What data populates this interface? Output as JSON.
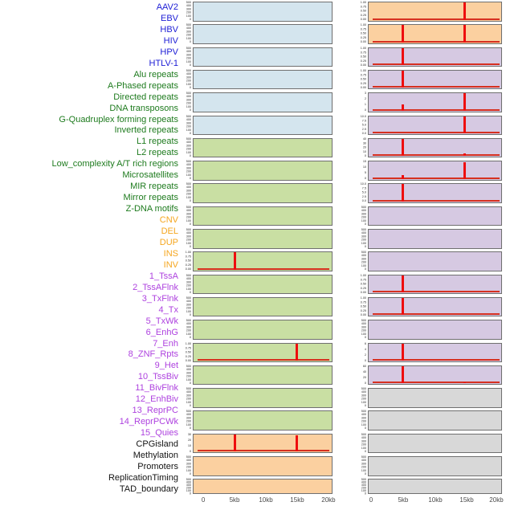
{
  "groups": {
    "virus": {
      "label_color": "#2020d6",
      "panel_color": "#d4e5ee"
    },
    "repeat": {
      "label_color": "#1e7b1e",
      "panel_color": "#c9dfa3"
    },
    "sv": {
      "label_color": "#f5a61e",
      "panel_color": "#fbd0a0"
    },
    "chromhmm": {
      "label_color": "#ae42df",
      "panel_color": "#d6c9e2"
    },
    "other": {
      "label_color": "#141414",
      "panel_color": "#d8d8d8"
    }
  },
  "colors": {
    "spike": "#ee0e0e",
    "baseline": "#d63020",
    "panel_border": "#707070",
    "axis_text": "#4a4a4a",
    "ytick_text": "#2e2e2e"
  },
  "chart_data": {
    "type": "bar",
    "layout": "small-multiples: 44 feature tracks in 2 columns of 22 rows; red spike bars mark feature density peaks near 5kb and 15kb; shared x-axis 0-20kb; y-tick labels per panel; feature name list down the left gutter",
    "x_axis": {
      "ticks": [
        "0",
        "5kb",
        "10kb",
        "15kb",
        "20kb"
      ],
      "left_pct": [
        7.5,
        29.9,
        52.3,
        74.7,
        97.1
      ],
      "right_pct": [
        2.4,
        26.3,
        50.3,
        73.7,
        95.8
      ]
    },
    "panels": [
      {
        "feature": "AAV2",
        "group": "virus",
        "yticks": [
          "500",
          "400",
          "300",
          "200",
          "100",
          "0"
        ],
        "spikes": [],
        "baseline": false
      },
      {
        "feature": "EBV",
        "group": "virus",
        "yticks": [
          "500",
          "400",
          "300",
          "200",
          "100",
          "0"
        ],
        "spikes": [],
        "baseline": false
      },
      {
        "feature": "HBV",
        "group": "virus",
        "yticks": [
          "500",
          "400",
          "300",
          "200",
          "100",
          "0"
        ],
        "spikes": [],
        "baseline": false
      },
      {
        "feature": "HIV",
        "group": "virus",
        "yticks": [
          "500",
          "400",
          "300",
          "200",
          "100",
          "0"
        ],
        "spikes": [],
        "baseline": false
      },
      {
        "feature": "HPV",
        "group": "virus",
        "yticks": [
          "500",
          "400",
          "300",
          "200",
          "100",
          "0"
        ],
        "spikes": [],
        "baseline": false
      },
      {
        "feature": "HTLV-1",
        "group": "virus",
        "yticks": [
          "500",
          "400",
          "300",
          "200",
          "100",
          "0"
        ],
        "spikes": [],
        "baseline": false
      },
      {
        "feature": "Alu repeats",
        "group": "repeat",
        "yticks": [
          "500",
          "400",
          "300",
          "200",
          "100",
          "0"
        ],
        "spikes": [],
        "baseline": false
      },
      {
        "feature": "A-Phased repeats",
        "group": "repeat",
        "yticks": [
          "500",
          "400",
          "300",
          "200",
          "100",
          "0"
        ],
        "spikes": [],
        "baseline": false
      },
      {
        "feature": "Directed repeats",
        "group": "repeat",
        "yticks": [
          "500",
          "400",
          "300",
          "200",
          "100",
          "0"
        ],
        "spikes": [],
        "baseline": false
      },
      {
        "feature": "DNA transposons",
        "group": "repeat",
        "yticks": [
          "500",
          "400",
          "300",
          "200",
          "100",
          "0"
        ],
        "spikes": [],
        "baseline": false
      },
      {
        "feature": "G-Quadruplex forming repeats",
        "group": "repeat",
        "yticks": [
          "500",
          "400",
          "300",
          "200",
          "100",
          "0"
        ],
        "spikes": [],
        "baseline": false
      },
      {
        "feature": "Inverted repeats",
        "group": "repeat",
        "yticks": [
          "1.00",
          "0.75",
          "0.50",
          "0.25",
          "0.00"
        ],
        "spikes": [
          {
            "kb": 5,
            "h": 1.0
          }
        ],
        "baseline": true
      },
      {
        "feature": "L1 repeats",
        "group": "repeat",
        "yticks": [
          "500",
          "400",
          "300",
          "200",
          "100",
          "0"
        ],
        "spikes": [],
        "baseline": false
      },
      {
        "feature": "L2 repeats",
        "group": "repeat",
        "yticks": [
          "500",
          "400",
          "300",
          "200",
          "100",
          "0"
        ],
        "spikes": [],
        "baseline": false
      },
      {
        "feature": "Low_complexity A/T rich regions",
        "group": "repeat",
        "yticks": [
          "500",
          "400",
          "300",
          "200",
          "100",
          "0"
        ],
        "spikes": [],
        "baseline": false
      },
      {
        "feature": "Microsatellites",
        "group": "repeat",
        "yticks": [
          "1.00",
          "0.75",
          "0.50",
          "0.25",
          "0.00"
        ],
        "spikes": [
          {
            "kb": 15,
            "h": 1.0
          }
        ],
        "baseline": true
      },
      {
        "feature": "MIR repeats",
        "group": "repeat",
        "yticks": [
          "500",
          "400",
          "300",
          "200",
          "100",
          "0"
        ],
        "spikes": [],
        "baseline": false
      },
      {
        "feature": "Mirror repeats",
        "group": "repeat",
        "yticks": [
          "500",
          "400",
          "300",
          "200",
          "100",
          "0"
        ],
        "spikes": [],
        "baseline": false
      },
      {
        "feature": "Z-DNA motifs",
        "group": "repeat",
        "yticks": [
          "500",
          "400",
          "300",
          "200",
          "100",
          "0"
        ],
        "spikes": [],
        "baseline": false
      },
      {
        "feature": "CNV",
        "group": "sv",
        "yticks": [
          "30",
          "20",
          "10",
          "0"
        ],
        "spikes": [
          {
            "kb": 5,
            "h": 1.0
          },
          {
            "kb": 15,
            "h": 0.95
          }
        ],
        "baseline": true
      },
      {
        "feature": "DEL",
        "group": "sv",
        "yticks": [
          "500",
          "400",
          "300",
          "200",
          "100",
          "0"
        ],
        "spikes": [],
        "baseline": false
      },
      {
        "feature": "DUP",
        "group": "sv",
        "yticks": [
          "500",
          "400",
          "300",
          "200",
          "100",
          "0"
        ],
        "spikes": [],
        "baseline": false
      },
      {
        "feature": "INS",
        "group": "sv",
        "yticks": [
          "1.00",
          "0.75",
          "0.50",
          "0.25",
          "0.00"
        ],
        "spikes": [
          {
            "kb": 15,
            "h": 1.0
          }
        ],
        "baseline": true
      },
      {
        "feature": "INV",
        "group": "sv",
        "yticks": [
          "1.00",
          "0.75",
          "0.50",
          "0.25",
          "0.00"
        ],
        "spikes": [
          {
            "kb": 5,
            "h": 1.0
          },
          {
            "kb": 15,
            "h": 1.0
          }
        ],
        "baseline": true
      },
      {
        "feature": "1_TssA",
        "group": "chromhmm",
        "yticks": [
          "1.00",
          "0.75",
          "0.50",
          "0.25",
          "0.00"
        ],
        "spikes": [
          {
            "kb": 5,
            "h": 1.0
          }
        ],
        "baseline": true
      },
      {
        "feature": "2_TssAFlnk",
        "group": "chromhmm",
        "yticks": [
          "1.00",
          "0.75",
          "0.50",
          "0.25",
          "0.00"
        ],
        "spikes": [
          {
            "kb": 5,
            "h": 1.0
          }
        ],
        "baseline": true
      },
      {
        "feature": "3_TxFlnk",
        "group": "chromhmm",
        "yticks": [
          "3",
          "2",
          "1",
          "0"
        ],
        "spikes": [
          {
            "kb": 5,
            "h": 0.35
          },
          {
            "kb": 15,
            "h": 1.0
          }
        ],
        "baseline": true
      },
      {
        "feature": "4_Tx",
        "group": "chromhmm",
        "yticks": [
          "10.0",
          "7.5",
          "5.0",
          "2.5",
          "0.0"
        ],
        "spikes": [
          {
            "kb": 15,
            "h": 1.0
          }
        ],
        "baseline": true
      },
      {
        "feature": "5_TxWk",
        "group": "chromhmm",
        "yticks": [
          "40",
          "30",
          "20",
          "10",
          "0"
        ],
        "spikes": [
          {
            "kb": 5,
            "h": 1.0
          },
          {
            "kb": 15,
            "h": 0.16
          }
        ],
        "baseline": true
      },
      {
        "feature": "6_EnhG",
        "group": "chromhmm",
        "yticks": [
          "15",
          "10",
          "5",
          "0"
        ],
        "spikes": [
          {
            "kb": 5,
            "h": 0.22
          },
          {
            "kb": 15,
            "h": 0.95
          }
        ],
        "baseline": true
      },
      {
        "feature": "7_Enh",
        "group": "chromhmm",
        "yticks": [
          "10.0",
          "7.5",
          "5.0",
          "2.5",
          "0.0"
        ],
        "spikes": [
          {
            "kb": 5,
            "h": 1.0
          }
        ],
        "baseline": true
      },
      {
        "feature": "8_ZNF_Rpts",
        "group": "chromhmm",
        "yticks": [
          "500",
          "400",
          "300",
          "200",
          "100",
          "0"
        ],
        "spikes": [],
        "baseline": false
      },
      {
        "feature": "9_Het",
        "group": "chromhmm",
        "yticks": [
          "500",
          "400",
          "300",
          "200",
          "100",
          "0"
        ],
        "spikes": [],
        "baseline": false
      },
      {
        "feature": "10_TssBiv",
        "group": "chromhmm",
        "yticks": [
          "500",
          "400",
          "300",
          "200",
          "100",
          "0"
        ],
        "spikes": [],
        "baseline": false
      },
      {
        "feature": "11_BivFlnk",
        "group": "chromhmm",
        "yticks": [
          "1.00",
          "0.75",
          "0.50",
          "0.25",
          "0.00"
        ],
        "spikes": [
          {
            "kb": 5,
            "h": 1.0
          }
        ],
        "baseline": true
      },
      {
        "feature": "12_EnhBiv",
        "group": "chromhmm",
        "yticks": [
          "1.00",
          "0.75",
          "0.50",
          "0.25",
          "0.00"
        ],
        "spikes": [
          {
            "kb": 5,
            "h": 1.0
          }
        ],
        "baseline": true
      },
      {
        "feature": "13_ReprPC",
        "group": "chromhmm",
        "yticks": [
          "500",
          "400",
          "300",
          "200",
          "100",
          "0"
        ],
        "spikes": [],
        "baseline": false
      },
      {
        "feature": "14_ReprPCWk",
        "group": "chromhmm",
        "yticks": [
          "6",
          "4",
          "2",
          "0"
        ],
        "spikes": [
          {
            "kb": 5,
            "h": 1.0
          }
        ],
        "baseline": true
      },
      {
        "feature": "15_Quies",
        "group": "chromhmm",
        "yticks": [
          "60",
          "40",
          "20",
          "0"
        ],
        "spikes": [
          {
            "kb": 5,
            "h": 1.0
          },
          {
            "kb": 15,
            "h": 0.08
          }
        ],
        "baseline": true
      },
      {
        "feature": "CPGisland",
        "group": "other",
        "yticks": [
          "500",
          "400",
          "300",
          "200",
          "100",
          "0"
        ],
        "spikes": [],
        "baseline": false
      },
      {
        "feature": "Methylation",
        "group": "other",
        "yticks": [
          "500",
          "400",
          "300",
          "200",
          "100",
          "0"
        ],
        "spikes": [],
        "baseline": false
      },
      {
        "feature": "Promoters",
        "group": "other",
        "yticks": [
          "500",
          "400",
          "300",
          "200",
          "100",
          "0"
        ],
        "spikes": [],
        "baseline": false
      },
      {
        "feature": "ReplicationTiming",
        "group": "other",
        "yticks": [
          "500",
          "400",
          "300",
          "200",
          "100",
          "0"
        ],
        "spikes": [],
        "baseline": false
      },
      {
        "feature": "TAD_boundary",
        "group": "other",
        "yticks": [
          "500",
          "400",
          "300",
          "200",
          "100",
          "0"
        ],
        "spikes": [],
        "baseline": false
      }
    ]
  }
}
